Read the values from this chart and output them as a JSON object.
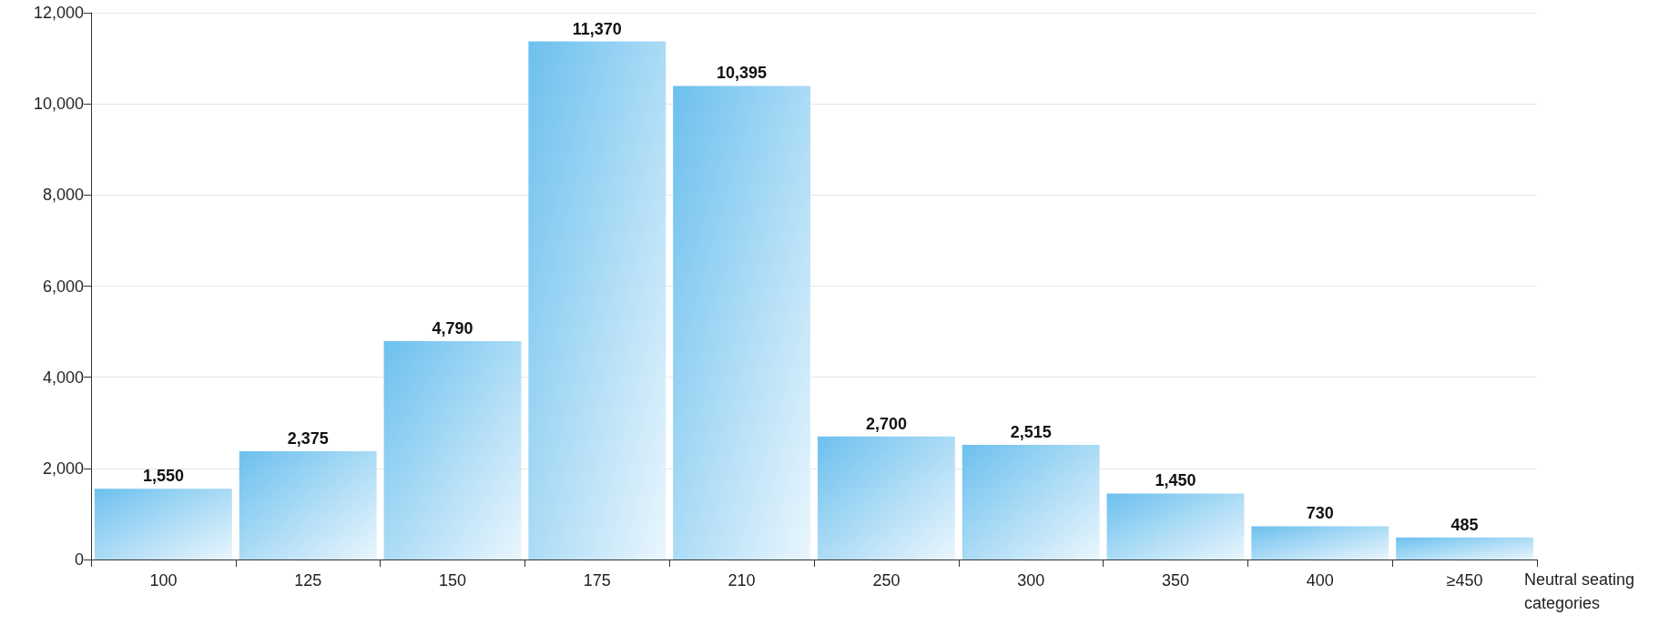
{
  "chart_data": {
    "type": "bar",
    "xlabel": "Neutral seating categories",
    "categories": [
      "100",
      "125",
      "150",
      "175",
      "210",
      "250",
      "300",
      "350",
      "400",
      "≥450"
    ],
    "values": [
      1550,
      2375,
      4790,
      11370,
      10395,
      2700,
      2515,
      1450,
      730,
      485
    ],
    "value_labels": [
      "1,550",
      "2,375",
      "4,790",
      "11,370",
      "10,395",
      "2,700",
      "2,515",
      "1,450",
      "730",
      "485"
    ],
    "color": "#6cc0ee",
    "ylim": [
      0,
      12000
    ],
    "yticks": [
      {
        "value": 0,
        "label": "0"
      },
      {
        "value": 2000,
        "label": "2,000"
      },
      {
        "value": 4000,
        "label": "4,000"
      },
      {
        "value": 6000,
        "label": "6,000"
      },
      {
        "value": 8000,
        "label": "8,000"
      },
      {
        "value": 10000,
        "label": "10,000"
      },
      {
        "value": 12000,
        "label": "12,000"
      }
    ],
    "grid": "y"
  }
}
